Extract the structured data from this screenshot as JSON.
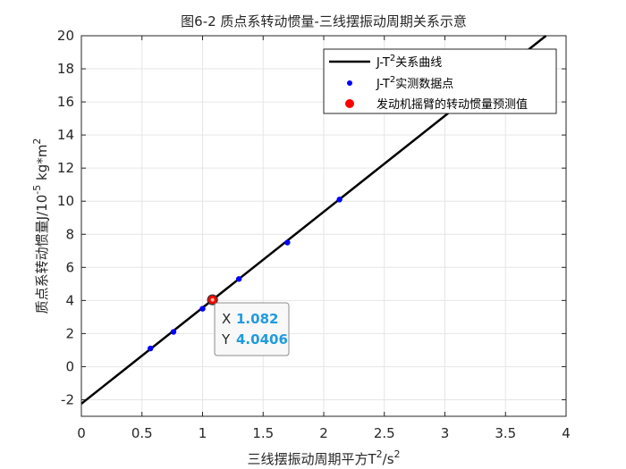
{
  "chart_data": {
    "type": "scatter",
    "title": "图6-2 质点系转动惯量-三线摆振动周期关系示意",
    "xlabel": {
      "prefix": "三线摆振动周期平方",
      "main": "T",
      "sup1": "2",
      "mid": "/s",
      "sup2": "2"
    },
    "ylabel": {
      "prefix": "质点系转动惯量",
      "main": "J/10",
      "sup1": "-5",
      "mid": " kg*m",
      "sup2": "2"
    },
    "xlim": [
      0,
      4
    ],
    "ylim": [
      -3,
      20
    ],
    "xticks": [
      "0",
      "0.5",
      "1",
      "1.5",
      "2",
      "2.5",
      "3",
      "3.5",
      "4"
    ],
    "yticks": [
      "-2",
      "0",
      "2",
      "4",
      "6",
      "8",
      "10",
      "12",
      "14",
      "16",
      "18",
      "20"
    ],
    "grid": true,
    "legend_position": "top-right",
    "fit_line": {
      "name_main": "J-T",
      "name_sup": "2",
      "name_suffix": "关系曲线",
      "slope": 5.8,
      "intercept": -2.24,
      "color": "#000000"
    },
    "series": [
      {
        "name_main": "J-T",
        "name_sup": "2",
        "name_suffix": "实测数据点",
        "color": "#0000ff",
        "x": [
          0.57,
          0.76,
          1.0,
          1.3,
          1.7,
          2.13
        ],
        "y": [
          1.1,
          2.1,
          3.5,
          5.3,
          7.5,
          10.1
        ]
      }
    ],
    "prediction_point": {
      "name": "发动机摇臂的转动惯量预测值",
      "x": 1.082,
      "y": 4.0406,
      "color": "#ff0000"
    },
    "datatip": {
      "x_key": "X",
      "x_value": "1.082",
      "y_key": "Y",
      "y_value": "4.0406"
    }
  }
}
